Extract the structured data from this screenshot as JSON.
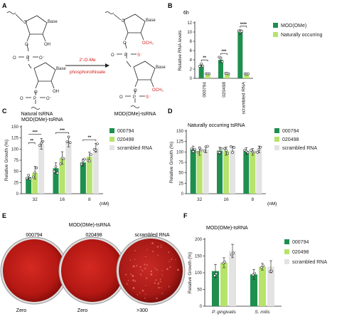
{
  "panels": {
    "A": {
      "letter": "A",
      "left_label": "Natural tsRNA",
      "right_label": "MOD(OMe)-tsRNA",
      "arrow_text": [
        "2'-O-Me",
        "phosphorothioate"
      ],
      "base": "Base",
      "oh": "OH",
      "och3": "OCH₃",
      "o": "O",
      "p": "P",
      "o_minus": "O⁻",
      "s_minus": "S⁻"
    },
    "B": {
      "letter": "B",
      "time": "6h",
      "legend": [
        "MOD(OMe)",
        "Naturally occurring"
      ],
      "colors": [
        "#1e8f4e",
        "#b6e36a"
      ]
    },
    "C": {
      "letter": "C",
      "subtitle": "MOD(OMe)-tsRNA",
      "unit": "(nM)",
      "legend": [
        "000794",
        "020498",
        "scrambled RNA"
      ],
      "colors": [
        "#1e8f4e",
        "#b6e36a",
        "#e3e3e3"
      ]
    },
    "D": {
      "letter": "D",
      "subtitle": "Naturally occurring tsRNA",
      "unit": "(nM)",
      "legend": [
        "000794",
        "020498",
        "scrambled RNA"
      ],
      "colors": [
        "#1e8f4e",
        "#b6e36a",
        "#e3e3e3"
      ]
    },
    "E": {
      "letter": "E",
      "title": "MOD(OMe)-tsRNA",
      "plates": [
        {
          "label": "000794",
          "count": "Zero"
        },
        {
          "label": "020498",
          "count": "Zero"
        },
        {
          "label": "scrambled RNA",
          "count": ">300"
        }
      ]
    },
    "F": {
      "letter": "F",
      "subtitle": "MOD(OMe)-tsRNA",
      "legend": [
        "000794",
        "020498",
        "scrambled RNA"
      ],
      "colors": [
        "#1e8f4e",
        "#b6e36a",
        "#e3e3e3"
      ]
    }
  },
  "chart_data": [
    {
      "panel": "B",
      "type": "bar",
      "ylabel": "Relative RNA levels",
      "ylim": [
        0,
        12
      ],
      "yticks": [
        0,
        2,
        4,
        6,
        8,
        10,
        12
      ],
      "categories": [
        "000794",
        "020498",
        "scrambled RNA"
      ],
      "series": [
        {
          "name": "MOD(OMe)",
          "values": [
            2.9,
            4.0,
            10.0
          ]
        },
        {
          "name": "Naturally occurring",
          "values": [
            1.0,
            1.0,
            1.0
          ]
        }
      ],
      "errors": [
        [
          0.3,
          0.6,
          0.5
        ],
        [
          0.1,
          0.1,
          0.1
        ]
      ],
      "significance": [
        "**",
        "***",
        "****"
      ]
    },
    {
      "panel": "C",
      "type": "bar",
      "ylabel": "Relative Growth (%)",
      "ylim": [
        0,
        150
      ],
      "yticks": [
        0,
        25,
        50,
        75,
        100,
        125,
        150
      ],
      "categories": [
        "32",
        "16",
        "8"
      ],
      "series": [
        {
          "name": "000794",
          "values": [
            37,
            57,
            70
          ]
        },
        {
          "name": "020498",
          "values": [
            47,
            80,
            83
          ]
        },
        {
          "name": "scrambled RNA",
          "values": [
            112,
            117,
            103
          ]
        }
      ],
      "errors": [
        [
          5,
          12,
          8
        ],
        [
          14,
          14,
          10
        ],
        [
          12,
          12,
          10
        ]
      ],
      "significance": [
        "**",
        "***",
        "**"
      ]
    },
    {
      "panel": "D",
      "type": "bar",
      "ylabel": "Relative Growth (%)",
      "ylim": [
        0,
        150
      ],
      "yticks": [
        0,
        25,
        50,
        75,
        100,
        125,
        150
      ],
      "categories": [
        "32",
        "16",
        "8"
      ],
      "series": [
        {
          "name": "000794",
          "values": [
            106,
            103,
            102
          ]
        },
        {
          "name": "020498",
          "values": [
            102,
            102,
            100
          ]
        },
        {
          "name": "scrambled RNA",
          "values": [
            106,
            105,
            106
          ]
        }
      ],
      "errors": [
        [
          8,
          8,
          8
        ],
        [
          10,
          10,
          8
        ],
        [
          8,
          8,
          8
        ]
      ]
    },
    {
      "panel": "F",
      "type": "bar",
      "ylabel": "Relative Growth (%)",
      "ylim": [
        0,
        200
      ],
      "yticks": [
        0,
        50,
        100,
        150,
        200
      ],
      "categories": [
        "P. gingivalis",
        "S. mitis"
      ],
      "series": [
        {
          "name": "000794",
          "values": [
            105,
            95
          ]
        },
        {
          "name": "020498",
          "values": [
            130,
            118
          ]
        },
        {
          "name": "scrambled RNA",
          "values": [
            165,
            118
          ]
        }
      ],
      "errors": [
        [
          20,
          15
        ],
        [
          15,
          10
        ],
        [
          20,
          18
        ]
      ]
    }
  ]
}
